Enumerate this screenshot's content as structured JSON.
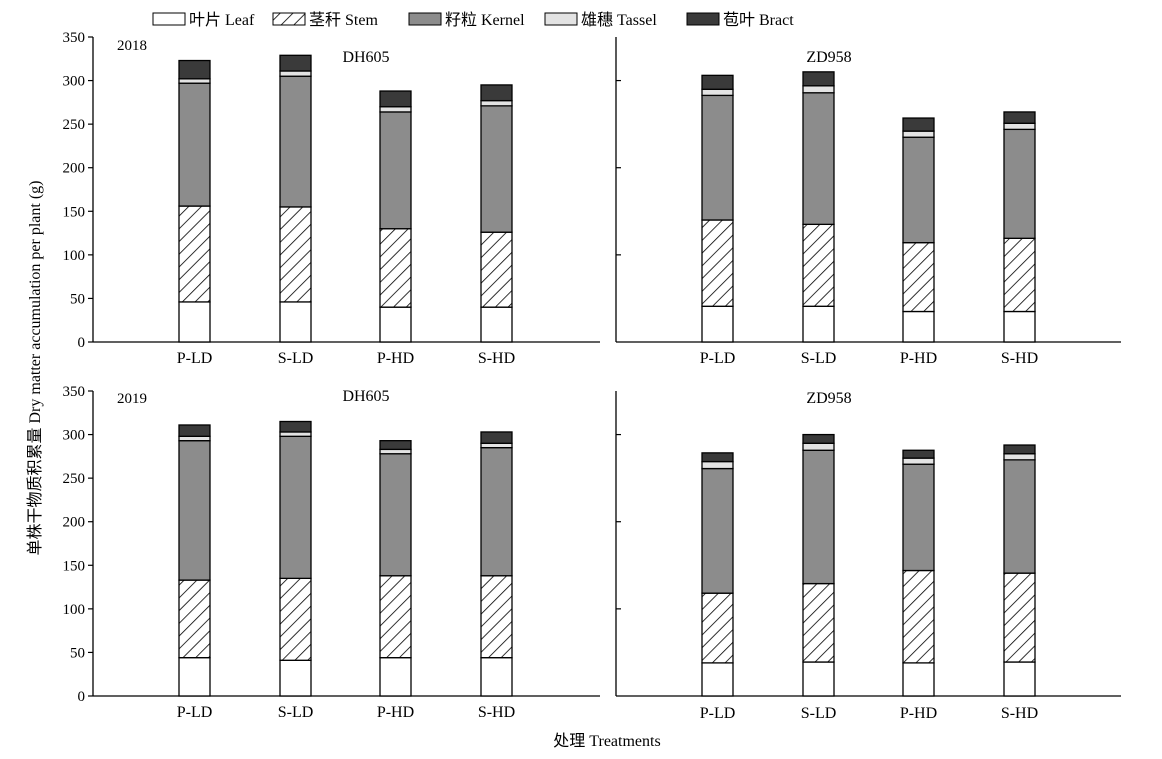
{
  "chart_data": {
    "type": "bar",
    "stacked": true,
    "ylabel": "单株干物质积累量 Dry matter accumulation per plant (g)",
    "xlabel": "处理 Treatments",
    "ylim": [
      0,
      350
    ],
    "yticks": [
      0,
      50,
      100,
      150,
      200,
      250,
      300,
      350
    ],
    "legend_position": "top",
    "legend": [
      {
        "name": "叶片 Leaf",
        "color": "#ffffff",
        "pattern": "none"
      },
      {
        "name": "茎秆 Stem",
        "color": "#ffffff",
        "pattern": "hatch"
      },
      {
        "name": "籽粒 Kernel",
        "color": "#8c8c8c",
        "pattern": "none"
      },
      {
        "name": "雄穗 Tassel",
        "color": "#e3e3e3",
        "pattern": "none"
      },
      {
        "name": "苞叶 Bract",
        "color": "#3a3a3a",
        "pattern": "none"
      }
    ],
    "categories": [
      "P-LD",
      "S-LD",
      "P-HD",
      "S-HD"
    ],
    "panels": [
      {
        "year": "2018",
        "variety": "DH605",
        "series": [
          {
            "name": "叶片 Leaf",
            "values": [
              46,
              46,
              40,
              40
            ]
          },
          {
            "name": "茎秆 Stem",
            "values": [
              110,
              109,
              90,
              86
            ]
          },
          {
            "name": "籽粒 Kernel",
            "values": [
              141,
              150,
              134,
              145
            ]
          },
          {
            "name": "雄穗 Tassel",
            "values": [
              5,
              6,
              6,
              6
            ]
          },
          {
            "name": "苞叶 Bract",
            "values": [
              21,
              18,
              18,
              18
            ]
          }
        ]
      },
      {
        "year": "",
        "variety": "ZD958",
        "series": [
          {
            "name": "叶片 Leaf",
            "values": [
              41,
              41,
              35,
              35
            ]
          },
          {
            "name": "茎秆 Stem",
            "values": [
              99,
              94,
              79,
              84
            ]
          },
          {
            "name": "籽粒 Kernel",
            "values": [
              143,
              151,
              121,
              125
            ]
          },
          {
            "name": "雄穗 Tassel",
            "values": [
              7,
              8,
              7,
              7
            ]
          },
          {
            "name": "苞叶 Bract",
            "values": [
              16,
              16,
              15,
              13
            ]
          }
        ]
      },
      {
        "year": "2019",
        "variety": "DH605",
        "series": [
          {
            "name": "叶片 Leaf",
            "values": [
              44,
              41,
              44,
              44
            ]
          },
          {
            "name": "茎秆 Stem",
            "values": [
              89,
              94,
              94,
              94
            ]
          },
          {
            "name": "籽粒 Kernel",
            "values": [
              160,
              163,
              140,
              147
            ]
          },
          {
            "name": "雄穗 Tassel",
            "values": [
              5,
              5,
              5,
              5
            ]
          },
          {
            "name": "苞叶 Bract",
            "values": [
              13,
              12,
              10,
              13
            ]
          }
        ]
      },
      {
        "year": "",
        "variety": "ZD958",
        "series": [
          {
            "name": "叶片 Leaf",
            "values": [
              38,
              39,
              38,
              39
            ]
          },
          {
            "name": "茎秆 Stem",
            "values": [
              80,
              90,
              106,
              102
            ]
          },
          {
            "name": "籽粒 Kernel",
            "values": [
              143,
              153,
              122,
              130
            ]
          },
          {
            "name": "雄穗 Tassel",
            "values": [
              8,
              8,
              7,
              7
            ]
          },
          {
            "name": "苞叶 Bract",
            "values": [
              10,
              10,
              9,
              10
            ]
          }
        ]
      }
    ]
  }
}
